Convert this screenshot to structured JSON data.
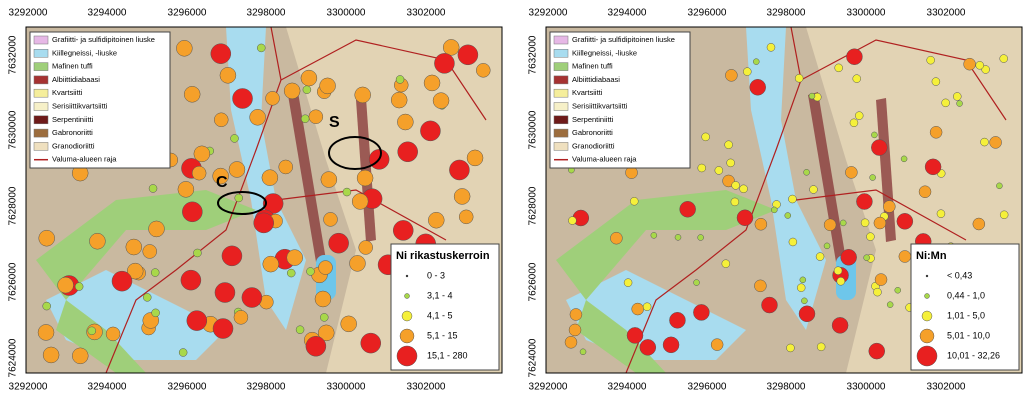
{
  "panels": [
    {
      "x_labels": [
        "3292000",
        "3294000",
        "3296000",
        "3298000",
        "3300000",
        "3302000"
      ],
      "y_labels": [
        "7632000",
        "7630000",
        "7628000",
        "7626000",
        "7624000"
      ],
      "legend": [
        "Grafiitti- ja sulfidipitoinen liuske",
        "Kiillegneissi, -liuske",
        "Mafinen tuffi",
        "Albiittidiabaasi",
        "Kvartsiitti",
        "Serisiittikvartsiitti",
        "Serpentiniitti",
        "Gabronoriitti",
        "Granodioriitti",
        "Valuma-alueen raja"
      ],
      "symbol_legend": {
        "title": "Ni rikastuskerroin",
        "classes": [
          "0 - 3",
          "3,1 - 4",
          "4,1 - 5",
          "5,1 - 15",
          "15,1 - 280"
        ]
      },
      "annotations": [
        "C",
        "S"
      ]
    },
    {
      "x_labels": [
        "3292000",
        "3294000",
        "3296000",
        "3298000",
        "3300000",
        "3302000"
      ],
      "y_labels": [
        "7632000",
        "7630000",
        "7628000",
        "7626000",
        "7624000"
      ],
      "legend": [
        "Grafiitti- ja sulfidipitoinen liuske",
        "Kiillegneissi, -liuske",
        "Mafinen tuffi",
        "Albiittidiabaasi",
        "Kvartsiitti",
        "Serisiittikvartsiitti",
        "Serpentiniitti",
        "Gabronoriitti",
        "Granodioriitti",
        "Valuma-alueen raja"
      ],
      "symbol_legend": {
        "title": "Ni:Mn",
        "classes": [
          "< 0,43",
          "0,44 - 1,0",
          "1,01 - 5,0",
          "5,01 - 10,0",
          "10,01 - 32,26"
        ]
      }
    }
  ]
}
